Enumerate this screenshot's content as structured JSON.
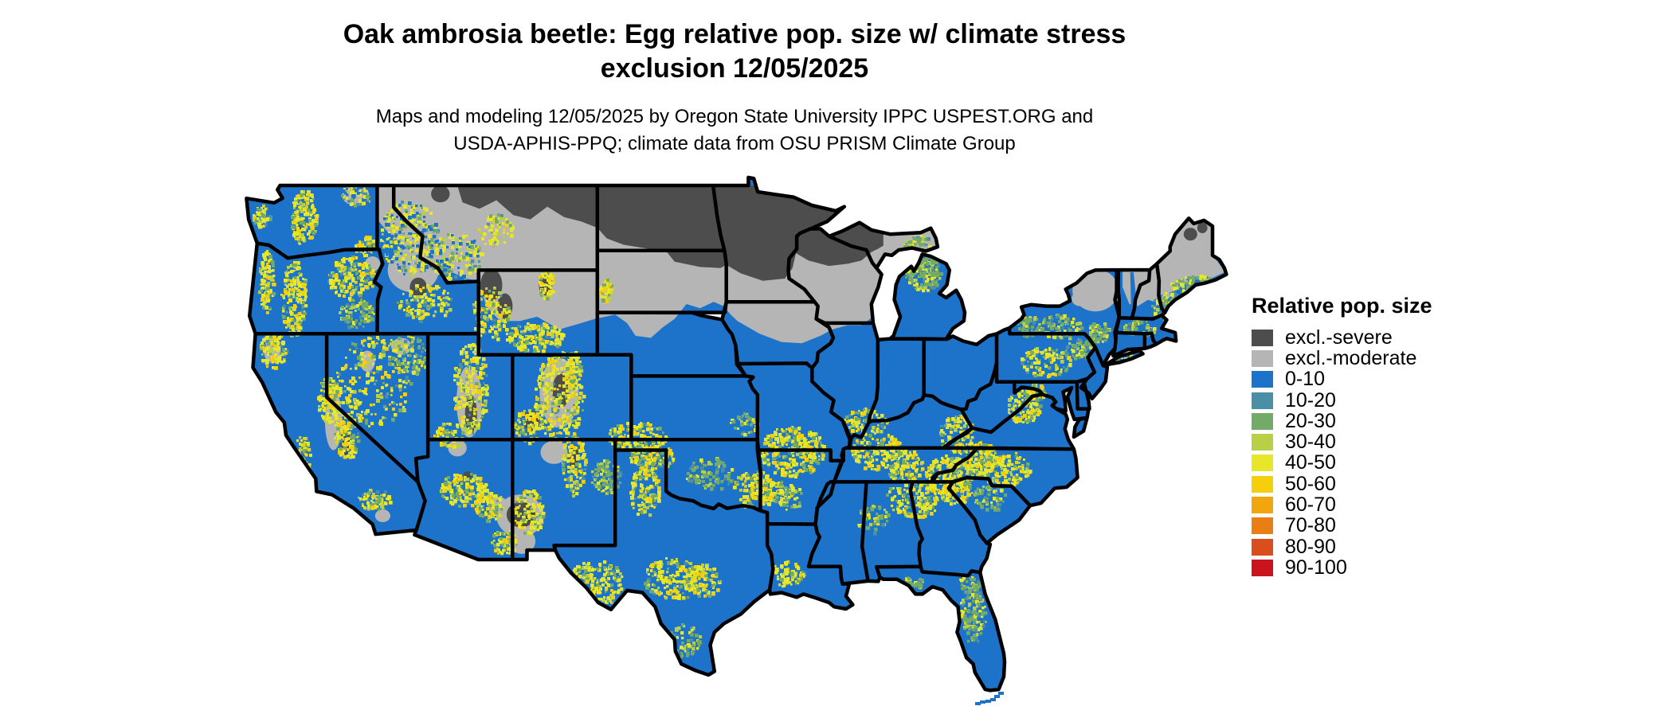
{
  "figure": {
    "title_line1": "Oak ambrosia beetle: Egg relative pop. size w/ climate stress",
    "title_line2": "exclusion 12/05/2025",
    "subtitle_line1": "Maps and modeling 12/05/2025 by Oregon State University IPPC USPEST.ORG and",
    "subtitle_line2": "USDA-APHIS-PPQ; climate data from OSU PRISM Climate Group"
  },
  "legend": {
    "title": "Relative pop. size",
    "entries": [
      {
        "label": "excl.-severe",
        "color": "#4d4d4d"
      },
      {
        "label": "excl.-moderate",
        "color": "#b5b5b5"
      },
      {
        "label": "0-10",
        "color": "#1d73c9"
      },
      {
        "label": "10-20",
        "color": "#4a8fa5"
      },
      {
        "label": "20-30",
        "color": "#74aa68"
      },
      {
        "label": "30-40",
        "color": "#b9cf45"
      },
      {
        "label": "40-50",
        "color": "#e8e628"
      },
      {
        "label": "50-60",
        "color": "#f5cf0c"
      },
      {
        "label": "60-70",
        "color": "#f2a60d"
      },
      {
        "label": "70-80",
        "color": "#e87e14"
      },
      {
        "label": "80-90",
        "color": "#da4e1e"
      },
      {
        "label": "90-100",
        "color": "#ca131c"
      }
    ]
  },
  "map": {
    "type": "choropleth-raster",
    "region": "Contiguous United States with state borders",
    "background": "#ffffff",
    "state_border_color": "#000000",
    "base_class": "0-10",
    "summary": {
      "excl_severe_areas": "Minnesota, North Dakota, northern Wisconsin, western Upper Michigan, north-central Montana band, northern South Dakota strip, high Rockies patches (Yellowstone, Colorado, Utah, Gila NM), far northern Maine flecks",
      "excl_moderate_areas": "Montana, Wyoming, South Dakota, Nebraska Sand Hills, northern Iowa, southern Minnesota fringe, central Idaho, Colorado and Utah mountains, interior northern New England and Adirondacks, eastern Upper Michigan",
      "higher_pop_speckle_bands": "Cascades, Sierra Nevada, Great Basin ranges, Rockies flanks, southeast Colorado to Texas panhandle, Edwards Plateau and Big Bend Texas, Ozarks and Ouachitas, western Kentucky-Tennessee, southern Appalachians and Carolina piedmont, north Georgia-Alabama, northern lower Michigan, coastal Maine, central Florida"
    }
  }
}
